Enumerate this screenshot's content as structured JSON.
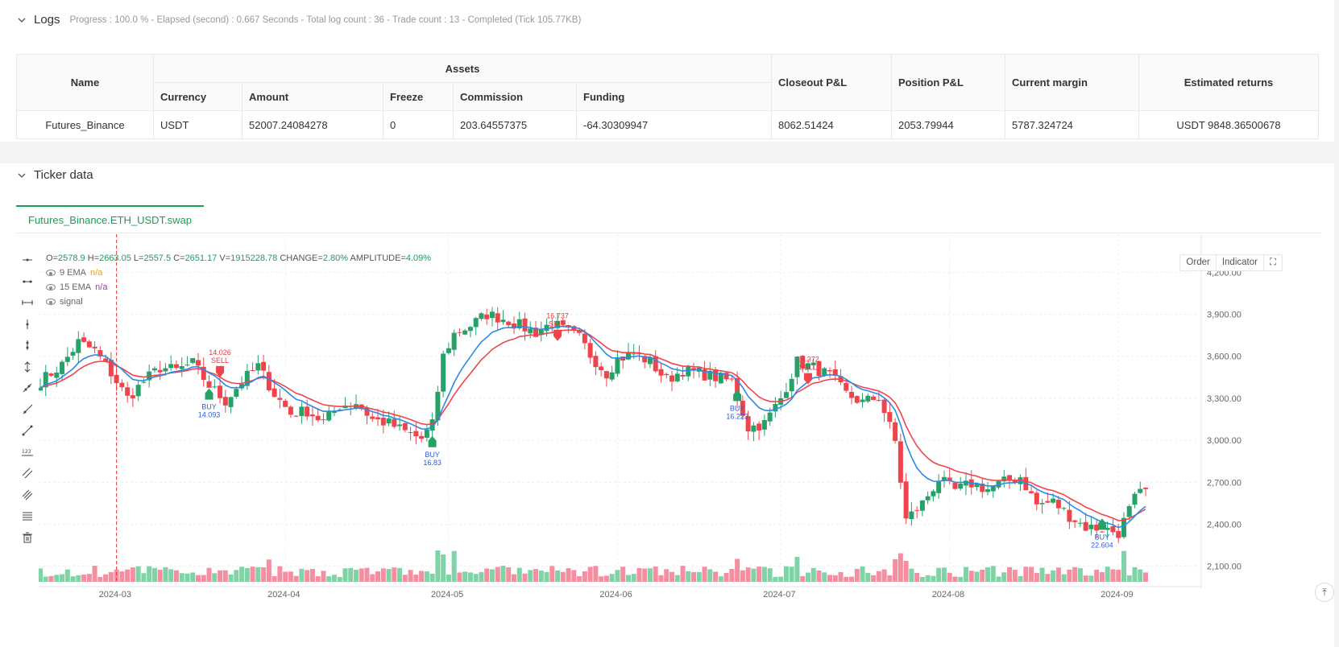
{
  "logs": {
    "title": "Logs",
    "status": "Progress : 100.0 % - Elapsed (second) : 0.667  Seconds - Total log count : 36 - Trade count : 13 - Completed (Tick 105.77KB)"
  },
  "assets_table": {
    "headers": {
      "name": "Name",
      "assets": "Assets",
      "currency": "Currency",
      "amount": "Amount",
      "freeze": "Freeze",
      "commission": "Commission",
      "funding": "Funding",
      "closeout": "Closeout P&L",
      "position": "Position P&L",
      "margin": "Current margin",
      "returns": "Estimated returns"
    },
    "row": {
      "name": "Futures_Binance",
      "currency": "USDT",
      "amount": "52007.24084278",
      "freeze": "0",
      "commission": "203.64557375",
      "funding": "-64.30309947",
      "closeout": "8062.51424",
      "position": "2053.79944",
      "margin": "5787.324724",
      "returns": "USDT 9848.36500678"
    }
  },
  "ticker": {
    "title": "Ticker data",
    "tab": "Futures_Binance.ETH_USDT.swap",
    "buttons": {
      "order": "Order",
      "indicator": "Indicator"
    },
    "ohlc": {
      "o_label": "O=",
      "o": "2578.9",
      "h_label": "H=",
      "h": "2663.05",
      "l_label": "L=",
      "l": "2557.5",
      "c_label": "C=",
      "c": "2651.17",
      "v_label": "V=",
      "v": "1915228.78",
      "change_label": "CHANGE=",
      "change": "2.80%",
      "amp_label": "AMPLITUDE=",
      "amp": "4.09%"
    },
    "legend": [
      {
        "name": "9 EMA",
        "value": "n/a"
      },
      {
        "name": "15 EMA",
        "value": "n/a"
      },
      {
        "name": "signal",
        "value": ""
      }
    ]
  },
  "colors": {
    "up": "#26a269",
    "down": "#f0444c",
    "ema9": "#2a8ae5",
    "ema15": "#f0444c",
    "vol_up": "#7fd3a6",
    "vol_down": "#f58ea0",
    "buy_label": "#2d5be3",
    "sell_label": "#e5383b"
  },
  "chart_data": {
    "type": "candlestick",
    "y_axis": {
      "min": 2000,
      "max": 4300,
      "ticks": [
        "2,100.00",
        "2,400.00",
        "2,700.00",
        "3,000.00",
        "3,300.00",
        "3,600.00",
        "3,900.00",
        "4,200.00"
      ],
      "tick_values": [
        2100,
        2400,
        2700,
        3000,
        3300,
        3600,
        3900,
        4200
      ]
    },
    "x_axis": {
      "labels": [
        "2024-03",
        "2024-04",
        "2024-05",
        "2024-06",
        "2024-07",
        "2024-08",
        "2024-09"
      ],
      "label_days": [
        14,
        45,
        75,
        106,
        136,
        167,
        198
      ]
    },
    "day_count": 204,
    "close_anchors": [
      [
        0,
        3420
      ],
      [
        4,
        3540
      ],
      [
        7,
        3700
      ],
      [
        10,
        3640
      ],
      [
        13,
        3480
      ],
      [
        16,
        3300
      ],
      [
        19,
        3420
      ],
      [
        22,
        3520
      ],
      [
        25,
        3500
      ],
      [
        28,
        3550
      ],
      [
        31,
        3390
      ],
      [
        34,
        3280
      ],
      [
        37,
        3420
      ],
      [
        40,
        3530
      ],
      [
        43,
        3330
      ],
      [
        46,
        3190
      ],
      [
        49,
        3210
      ],
      [
        52,
        3130
      ],
      [
        55,
        3250
      ],
      [
        58,
        3270
      ],
      [
        61,
        3150
      ],
      [
        64,
        3120
      ],
      [
        67,
        3060
      ],
      [
        70,
        3010
      ],
      [
        72,
        3110
      ],
      [
        74,
        3600
      ],
      [
        76,
        3760
      ],
      [
        79,
        3820
      ],
      [
        82,
        3900
      ],
      [
        85,
        3870
      ],
      [
        88,
        3820
      ],
      [
        91,
        3770
      ],
      [
        94,
        3840
      ],
      [
        96,
        3790
      ],
      [
        99,
        3730
      ],
      [
        101,
        3610
      ],
      [
        104,
        3480
      ],
      [
        106,
        3580
      ],
      [
        109,
        3620
      ],
      [
        112,
        3560
      ],
      [
        115,
        3430
      ],
      [
        118,
        3500
      ],
      [
        121,
        3480
      ],
      [
        124,
        3450
      ],
      [
        127,
        3420
      ],
      [
        130,
        3090
      ],
      [
        133,
        3120
      ],
      [
        136,
        3300
      ],
      [
        139,
        3560
      ],
      [
        142,
        3520
      ],
      [
        145,
        3460
      ],
      [
        148,
        3330
      ],
      [
        151,
        3270
      ],
      [
        154,
        3310
      ],
      [
        157,
        2990
      ],
      [
        159,
        2430
      ],
      [
        162,
        2550
      ],
      [
        165,
        2720
      ],
      [
        168,
        2640
      ],
      [
        171,
        2690
      ],
      [
        174,
        2650
      ],
      [
        177,
        2700
      ],
      [
        180,
        2740
      ],
      [
        183,
        2540
      ],
      [
        186,
        2560
      ],
      [
        189,
        2460
      ],
      [
        192,
        2380
      ],
      [
        195,
        2370
      ],
      [
        198,
        2340
      ],
      [
        201,
        2580
      ],
      [
        203,
        2651
      ]
    ],
    "signals": [
      {
        "type": "BUY",
        "day": 31,
        "price": 3290,
        "value": "14.093"
      },
      {
        "type": "SELL",
        "day": 33,
        "price": 3530,
        "value": "14.026"
      },
      {
        "type": "BUY",
        "day": 72,
        "price": 2950,
        "value": "16.83"
      },
      {
        "type": "SELL",
        "day": 95,
        "price": 3790,
        "value": "16.737"
      },
      {
        "type": "BUY",
        "day": 128,
        "price": 3280,
        "value": "16.223"
      },
      {
        "type": "SELL",
        "day": 141,
        "price": 3480,
        "value": "16.372"
      },
      {
        "type": "BUY",
        "day": 195,
        "price": 2360,
        "value": "22.604"
      }
    ],
    "cursor_day": 14
  }
}
